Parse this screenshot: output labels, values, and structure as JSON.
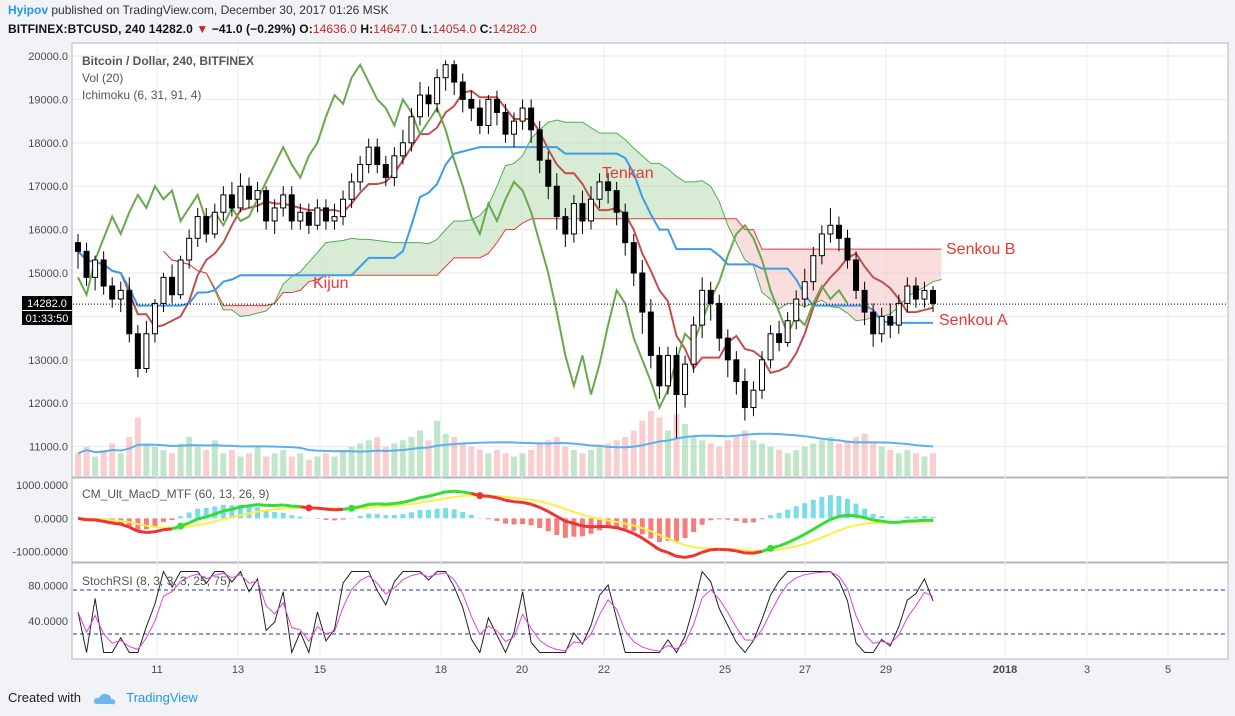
{
  "header": {
    "user": "Hyipov",
    "published": "published on TradingView.com, December 30, 2017 01:26 MSK",
    "symbol": "BITFINEX:BTCUSD, 240",
    "change": "−41.0 (−0.29%)",
    "o_label": "O:",
    "o_value": "14636.0",
    "h_label": "H:",
    "h_value": "14647.0",
    "l_label": "L:",
    "l_value": "14054.0",
    "c_label": "C:",
    "c_value": "14282.0"
  },
  "legend": {
    "title": "Bitcoin / Dollar, 240, BITFINEX",
    "vol": "Vol (20)",
    "ichimoku": "Ichimoku (6, 31, 91, 4)",
    "macd": "CM_Ult_MacD_MTF (60, 13, 26, 9)",
    "stoch": "StochRSI (8, 3, 3, 3, 25, 75)"
  },
  "annotations": {
    "tenkan": "Tenkan",
    "kijun": "Kijun",
    "senkou_b": "Senkou B",
    "senkou_a": "Senkou A"
  },
  "price_badge": {
    "price": "14282.0",
    "countdown": "01:33:50"
  },
  "footer": {
    "created": "Created with",
    "brand": "TradingView"
  },
  "colors": {
    "bull": "#ffffff",
    "bear": "#000000",
    "tenkan": "#c0504d",
    "kijun": "#3d9be9",
    "lagging": "#6aa84f",
    "cloud_green": "#a8d5a2",
    "cloud_red": "#f4b6b6",
    "vol_ma": "#5ab0ef",
    "macd_up": "#33dd33",
    "macd_down": "#ee3333",
    "macd_signal": "#ffee44",
    "stoch_k": "#222222",
    "stoch_d": "#dd44dd",
    "band": "#2233aa"
  },
  "chart_data": {
    "type": "candlestick",
    "price_axis": {
      "labels": [
        "20000.0",
        "19000.0",
        "18000.0",
        "17000.0",
        "16000.0",
        "15000.0",
        "14000.0",
        "13000.0",
        "12000.0",
        "11000.0"
      ],
      "range": [
        10300,
        20300
      ]
    },
    "macd_axis": {
      "labels": [
        "1000.0000",
        "0.0000",
        "-1000.0000"
      ],
      "range": [
        -1250,
        1150
      ]
    },
    "stoch_axis": {
      "labels": [
        "80.0000",
        "40.0000"
      ],
      "range": [
        0,
        100
      ],
      "bands": [
        75,
        25
      ]
    },
    "x_axis": {
      "labels": [
        "11",
        "13",
        "15",
        "18",
        "20",
        "22",
        "25",
        "27",
        "29",
        "2018",
        "3",
        "5"
      ]
    },
    "last_price": 14282,
    "candles": [
      [
        15700,
        15500,
        15900,
        15100
      ],
      [
        15500,
        14900,
        15700,
        14700
      ],
      [
        14900,
        15300,
        15400,
        14600
      ],
      [
        15300,
        14700,
        15500,
        14500
      ],
      [
        14700,
        14400,
        14900,
        14200
      ],
      [
        14400,
        14600,
        14800,
        14100
      ],
      [
        14600,
        13600,
        14900,
        13400
      ],
      [
        13600,
        12800,
        13800,
        12600
      ],
      [
        12800,
        13600,
        13900,
        12700
      ],
      [
        13600,
        14300,
        14400,
        13400
      ],
      [
        14300,
        14900,
        15000,
        14100
      ],
      [
        14900,
        14500,
        15200,
        14300
      ],
      [
        14500,
        15300,
        15400,
        14400
      ],
      [
        15300,
        15800,
        16000,
        15100
      ],
      [
        15800,
        16300,
        16500,
        15600
      ],
      [
        16300,
        15900,
        16500,
        15700
      ],
      [
        15900,
        16400,
        16600,
        15800
      ],
      [
        16400,
        16800,
        17000,
        16200
      ],
      [
        16800,
        16500,
        17100,
        16300
      ],
      [
        16500,
        17000,
        17300,
        16400
      ],
      [
        17000,
        16700,
        17200,
        16500
      ],
      [
        16700,
        16900,
        17100,
        16400
      ],
      [
        16900,
        16200,
        17000,
        16000
      ],
      [
        16200,
        16500,
        16700,
        15900
      ],
      [
        16500,
        16800,
        17000,
        16300
      ],
      [
        16800,
        16200,
        17000,
        16000
      ],
      [
        16200,
        16400,
        16600,
        16000
      ],
      [
        16400,
        16100,
        16600,
        15900
      ],
      [
        16100,
        16500,
        16700,
        16000
      ],
      [
        16500,
        16200,
        16700,
        16000
      ],
      [
        16200,
        16300,
        16600,
        16000
      ],
      [
        16300,
        16700,
        16900,
        16100
      ],
      [
        16700,
        17100,
        17300,
        16500
      ],
      [
        17100,
        17500,
        17700,
        16900
      ],
      [
        17500,
        17900,
        18100,
        17300
      ],
      [
        17900,
        17500,
        18100,
        17300
      ],
      [
        17500,
        17200,
        17700,
        17000
      ],
      [
        17200,
        17700,
        17900,
        17000
      ],
      [
        17700,
        18000,
        18300,
        17500
      ],
      [
        18000,
        18600,
        18800,
        17800
      ],
      [
        18600,
        19100,
        19400,
        18400
      ],
      [
        19100,
        18900,
        19300,
        18600
      ],
      [
        18900,
        19500,
        19700,
        18700
      ],
      [
        19500,
        19800,
        19900,
        19200
      ],
      [
        19800,
        19400,
        19900,
        19100
      ],
      [
        19400,
        19000,
        19600,
        18700
      ],
      [
        19000,
        18800,
        19200,
        18500
      ],
      [
        18800,
        18400,
        19000,
        18200
      ],
      [
        18400,
        19000,
        19100,
        18200
      ],
      [
        19000,
        18700,
        19200,
        18400
      ],
      [
        18700,
        18200,
        18900,
        18000
      ],
      [
        18200,
        18500,
        18700,
        17900
      ],
      [
        18500,
        18800,
        19000,
        18300
      ],
      [
        18800,
        18300,
        19000,
        18000
      ],
      [
        18300,
        17600,
        18500,
        17300
      ],
      [
        17600,
        17000,
        17800,
        16700
      ],
      [
        17000,
        16300,
        17300,
        16000
      ],
      [
        16300,
        15900,
        16500,
        15600
      ],
      [
        15900,
        16600,
        16800,
        15700
      ],
      [
        16600,
        16200,
        16900,
        15900
      ],
      [
        16200,
        16700,
        17000,
        16000
      ],
      [
        16700,
        17100,
        17300,
        16500
      ],
      [
        17100,
        16900,
        17300,
        16600
      ],
      [
        16900,
        16400,
        17100,
        16100
      ],
      [
        16400,
        15700,
        16600,
        15400
      ],
      [
        15700,
        15000,
        15900,
        14700
      ],
      [
        15000,
        14100,
        15300,
        13600
      ],
      [
        14100,
        13100,
        14400,
        12800
      ],
      [
        13100,
        12400,
        13300,
        12100
      ],
      [
        12400,
        13100,
        13300,
        12200
      ],
      [
        13100,
        12200,
        13300,
        11200
      ],
      [
        12200,
        12900,
        13100,
        11900
      ],
      [
        12900,
        13800,
        14000,
        12700
      ],
      [
        13800,
        14600,
        14900,
        13500
      ],
      [
        14600,
        14300,
        14800,
        13900
      ],
      [
        14300,
        13500,
        14500,
        13200
      ],
      [
        13500,
        13000,
        13700,
        12600
      ],
      [
        13000,
        12500,
        13200,
        12200
      ],
      [
        12500,
        11900,
        12800,
        11600
      ],
      [
        11900,
        12300,
        12500,
        11700
      ],
      [
        12300,
        13000,
        13200,
        12100
      ],
      [
        13000,
        13600,
        13800,
        12800
      ],
      [
        13600,
        13400,
        13900,
        13200
      ],
      [
        13400,
        13900,
        14100,
        13300
      ],
      [
        13900,
        14400,
        14600,
        13700
      ],
      [
        14400,
        14800,
        15100,
        14200
      ],
      [
        14800,
        15400,
        15600,
        14600
      ],
      [
        15400,
        15900,
        16100,
        15200
      ],
      [
        15900,
        16100,
        16500,
        15700
      ],
      [
        16100,
        15800,
        16300,
        15500
      ],
      [
        15800,
        15300,
        16000,
        15100
      ],
      [
        15300,
        14600,
        15500,
        14400
      ],
      [
        14600,
        14100,
        14800,
        13800
      ],
      [
        14100,
        13600,
        14300,
        13300
      ],
      [
        13600,
        14000,
        14200,
        13400
      ],
      [
        14000,
        13800,
        14300,
        13500
      ],
      [
        13800,
        14300,
        14500,
        13600
      ],
      [
        14300,
        14700,
        14900,
        14100
      ],
      [
        14700,
        14400,
        14900,
        14200
      ],
      [
        14400,
        14600,
        14800,
        14200
      ],
      [
        14600,
        14300,
        14700,
        14100
      ]
    ],
    "volume": [
      0.35,
      0.45,
      0.3,
      0.4,
      0.5,
      0.35,
      0.6,
      0.9,
      0.5,
      0.45,
      0.4,
      0.35,
      0.5,
      0.6,
      0.45,
      0.4,
      0.55,
      0.35,
      0.4,
      0.3,
      0.35,
      0.45,
      0.3,
      0.35,
      0.4,
      0.3,
      0.35,
      0.25,
      0.3,
      0.35,
      0.3,
      0.4,
      0.45,
      0.5,
      0.55,
      0.6,
      0.45,
      0.5,
      0.55,
      0.6,
      0.7,
      0.55,
      0.85,
      0.65,
      0.6,
      0.5,
      0.45,
      0.4,
      0.35,
      0.4,
      0.35,
      0.3,
      0.35,
      0.4,
      0.5,
      0.55,
      0.6,
      0.45,
      0.4,
      0.35,
      0.4,
      0.45,
      0.5,
      0.55,
      0.6,
      0.7,
      0.85,
      1.0,
      0.9,
      0.7,
      0.95,
      0.8,
      0.6,
      0.55,
      0.5,
      0.45,
      0.55,
      0.6,
      0.7,
      0.55,
      0.5,
      0.45,
      0.4,
      0.35,
      0.4,
      0.45,
      0.5,
      0.55,
      0.6,
      0.5,
      0.55,
      0.6,
      0.65,
      0.5,
      0.45,
      0.4,
      0.35,
      0.4,
      0.35,
      0.3,
      0.35
    ]
  }
}
